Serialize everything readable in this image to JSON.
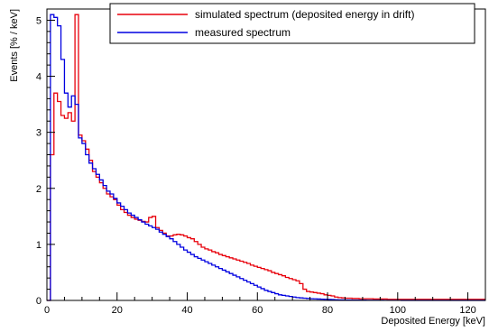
{
  "chart_data": {
    "type": "line",
    "title": "",
    "xlabel": "Deposited Energy [keV]",
    "ylabel": "Events [% / keV]",
    "xlim": [
      0,
      125
    ],
    "ylim": [
      0,
      5.2
    ],
    "x_ticks": [
      "0",
      "20",
      "40",
      "60",
      "80",
      "100",
      "120"
    ],
    "x_tick_values": [
      0,
      20,
      40,
      60,
      80,
      100,
      120
    ],
    "y_ticks": [
      "0",
      "1",
      "2",
      "3",
      "4",
      "5"
    ],
    "y_tick_values": [
      0,
      1,
      2,
      3,
      4,
      5
    ],
    "grid": false,
    "legend_position": "top-right",
    "bin_width": 1,
    "series": [
      {
        "name": "simulated spectrum (deposited energy in drift)",
        "color": "#e8000b",
        "values": [
          0,
          2.6,
          3.7,
          3.55,
          3.3,
          3.25,
          3.35,
          3.2,
          5.1,
          2.95,
          2.85,
          2.7,
          2.5,
          2.3,
          2.2,
          2.1,
          2.0,
          1.9,
          1.85,
          1.8,
          1.7,
          1.62,
          1.57,
          1.52,
          1.48,
          1.45,
          1.43,
          1.41,
          1.4,
          1.48,
          1.5,
          1.3,
          1.25,
          1.2,
          1.15,
          1.15,
          1.17,
          1.18,
          1.17,
          1.15,
          1.12,
          1.1,
          1.05,
          1.0,
          0.95,
          0.92,
          0.9,
          0.87,
          0.85,
          0.82,
          0.8,
          0.78,
          0.76,
          0.74,
          0.72,
          0.7,
          0.68,
          0.66,
          0.63,
          0.61,
          0.59,
          0.57,
          0.55,
          0.53,
          0.5,
          0.48,
          0.46,
          0.44,
          0.41,
          0.39,
          0.37,
          0.35,
          0.3,
          0.2,
          0.16,
          0.15,
          0.14,
          0.13,
          0.12,
          0.1,
          0.09,
          0.08,
          0.06,
          0.05,
          0.045,
          0.04,
          0.04,
          0.035,
          0.035,
          0.03,
          0.03,
          0.03,
          0.03,
          0.025,
          0.025,
          0.025,
          0.025,
          0.02,
          0.02,
          0.02,
          0.02,
          0.02,
          0.02,
          0.02,
          0.02,
          0.02,
          0.02,
          0.02,
          0.02,
          0.02,
          0.02,
          0.02,
          0.02,
          0.02,
          0.02,
          0.02,
          0.02,
          0.02,
          0.02,
          0.02,
          0.02,
          0.02,
          0.02,
          0.02,
          0.02
        ]
      },
      {
        "name": "measured spectrum",
        "color": "#0000e0",
        "values": [
          0,
          5.1,
          5.05,
          4.9,
          4.3,
          3.7,
          3.45,
          3.65,
          3.5,
          2.9,
          2.8,
          2.6,
          2.45,
          2.35,
          2.25,
          2.15,
          2.05,
          1.95,
          1.9,
          1.82,
          1.74,
          1.68,
          1.62,
          1.56,
          1.52,
          1.48,
          1.44,
          1.4,
          1.36,
          1.33,
          1.3,
          1.27,
          1.22,
          1.18,
          1.14,
          1.1,
          1.05,
          1.0,
          0.95,
          0.9,
          0.86,
          0.82,
          0.78,
          0.75,
          0.72,
          0.69,
          0.66,
          0.63,
          0.6,
          0.57,
          0.54,
          0.51,
          0.48,
          0.45,
          0.42,
          0.39,
          0.36,
          0.33,
          0.3,
          0.27,
          0.24,
          0.21,
          0.18,
          0.16,
          0.14,
          0.12,
          0.1,
          0.09,
          0.08,
          0.07,
          0.06,
          0.05,
          0.045,
          0.04,
          0.035,
          0.03,
          0.028,
          0.025,
          0.022,
          0.02,
          0.018,
          0.015,
          0.012,
          0.01,
          0.01,
          0.008,
          0.008,
          0.006,
          0.006,
          0.005,
          0.005,
          0.004,
          0.004,
          0.003,
          0.003,
          0.003,
          0.002,
          0.002,
          0.002,
          0.002,
          0.002,
          0.001,
          0.001,
          0.001,
          0.001,
          0.001,
          0.001,
          0.001,
          0.001,
          0.001,
          0.001,
          0.001,
          0.001,
          0.001,
          0.001,
          0.001,
          0.001,
          0.001,
          0.001,
          0.001,
          0.001,
          0.001,
          0.001,
          0.001,
          0.001
        ]
      }
    ]
  }
}
